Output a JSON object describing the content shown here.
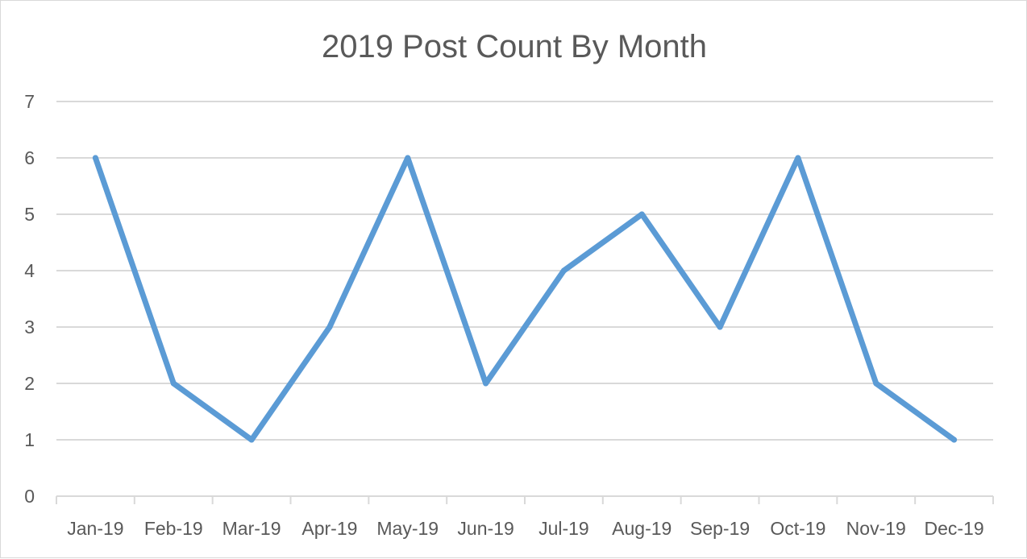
{
  "chart_data": {
    "type": "line",
    "title": "2019 Post Count By Month",
    "xlabel": "",
    "ylabel": "",
    "categories": [
      "Jan-19",
      "Feb-19",
      "Mar-19",
      "Apr-19",
      "May-19",
      "Jun-19",
      "Jul-19",
      "Aug-19",
      "Sep-19",
      "Oct-19",
      "Nov-19",
      "Dec-19"
    ],
    "series": [
      {
        "values": [
          6,
          2,
          1,
          3,
          6,
          2,
          4,
          5,
          3,
          6,
          2,
          1
        ],
        "color": "#5b9bd5"
      }
    ],
    "ylim": [
      0,
      7
    ],
    "yticks": [
      0,
      1,
      2,
      3,
      4,
      5,
      6,
      7
    ],
    "grid": true,
    "legend": "none"
  }
}
